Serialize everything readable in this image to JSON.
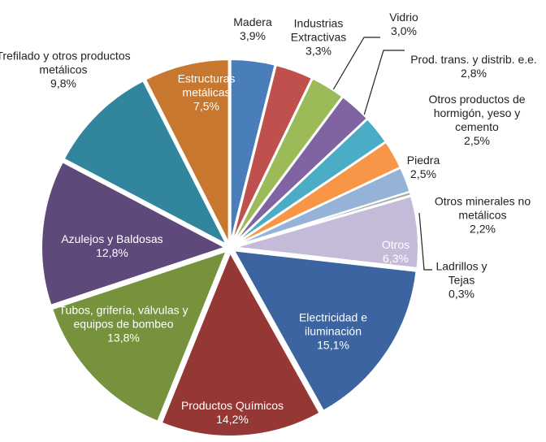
{
  "chart_data": {
    "type": "pie",
    "categories": [
      "Madera",
      "Industrias Extractivas",
      "Vidrio",
      "Prod. trans. y distrib. e.e.",
      "Otros productos de hormigón, yeso y cemento",
      "Piedra",
      "Otros minerales no metálicos",
      "Ladrillos y Tejas",
      "Otros",
      "Electricidad e iluminación",
      "Productos Químicos",
      "Tubos, grifería, válvulas y equipos de bombeo",
      "Azulejos y Baldosas",
      "Trefilado y otros productos metálicos",
      "Estructuras metálicas"
    ],
    "values": [
      3.9,
      3.3,
      3.0,
      2.8,
      2.5,
      2.5,
      2.2,
      0.3,
      6.3,
      15.1,
      14.2,
      13.8,
      12.8,
      9.8,
      7.5
    ],
    "value_labels": [
      "3,9%",
      "3,3%",
      "3,0%",
      "2,8%",
      "2,5%",
      "2,5%",
      "2,2%",
      "0,3%",
      "6,3%",
      "15,1%",
      "14,2%",
      "13,8%",
      "12,8%",
      "9,8%",
      "7,5%"
    ],
    "colors": [
      "#4a7ebb",
      "#c0504d",
      "#9bbb59",
      "#8064a2",
      "#4bacc6",
      "#f79646",
      "#95b3d7",
      "#a5a5a5",
      "#c4bbd9",
      "#3b64a0",
      "#953735",
      "#76923c",
      "#5f497a",
      "#31859c",
      "#c8772e"
    ]
  }
}
